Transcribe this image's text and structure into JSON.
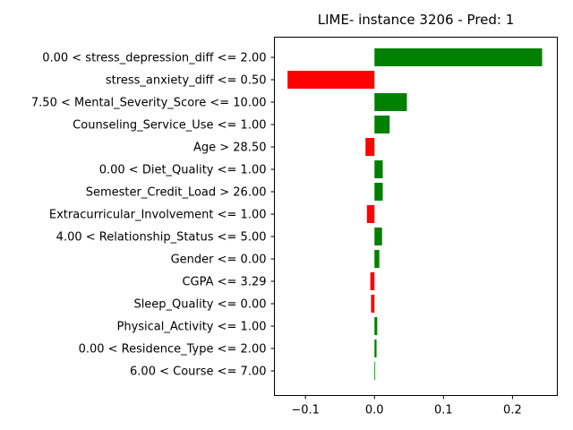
{
  "chart_data": {
    "type": "bar",
    "orientation": "horizontal",
    "title": "LIME- instance 3206 - Pred: 1",
    "xlabel": "",
    "ylabel": "",
    "xlim": [
      -0.145,
      0.265
    ],
    "xticks": [
      -0.1,
      0.0,
      0.1,
      0.2
    ],
    "xtick_labels": [
      "−0.1",
      "0.0",
      "0.1",
      "0.2"
    ],
    "grid": false,
    "legend": "none",
    "positive_color": "#008000",
    "negative_color": "#ff0000",
    "categories": [
      "0.00 < stress_depression_diff <= 2.00",
      "stress_anxiety_diff <= 0.50",
      "7.50 < Mental_Severity_Score <= 10.00",
      "Counseling_Service_Use <= 1.00",
      "Age > 28.50",
      "0.00 < Diet_Quality <= 1.00",
      "Semester_Credit_Load > 26.00",
      "Extracurricular_Involvement <= 1.00",
      "4.00 < Relationship_Status <= 5.00",
      "Gender <= 0.00",
      "CGPA <= 3.29",
      "Sleep_Quality <= 0.00",
      "Physical_Activity <= 1.00",
      "0.00 < Residence_Type <= 2.00",
      "6.00 < Course <= 7.00"
    ],
    "values": [
      0.243,
      -0.126,
      0.047,
      0.022,
      -0.013,
      0.012,
      0.012,
      -0.011,
      0.011,
      0.007,
      -0.006,
      -0.005,
      0.004,
      0.003,
      0.001
    ]
  }
}
